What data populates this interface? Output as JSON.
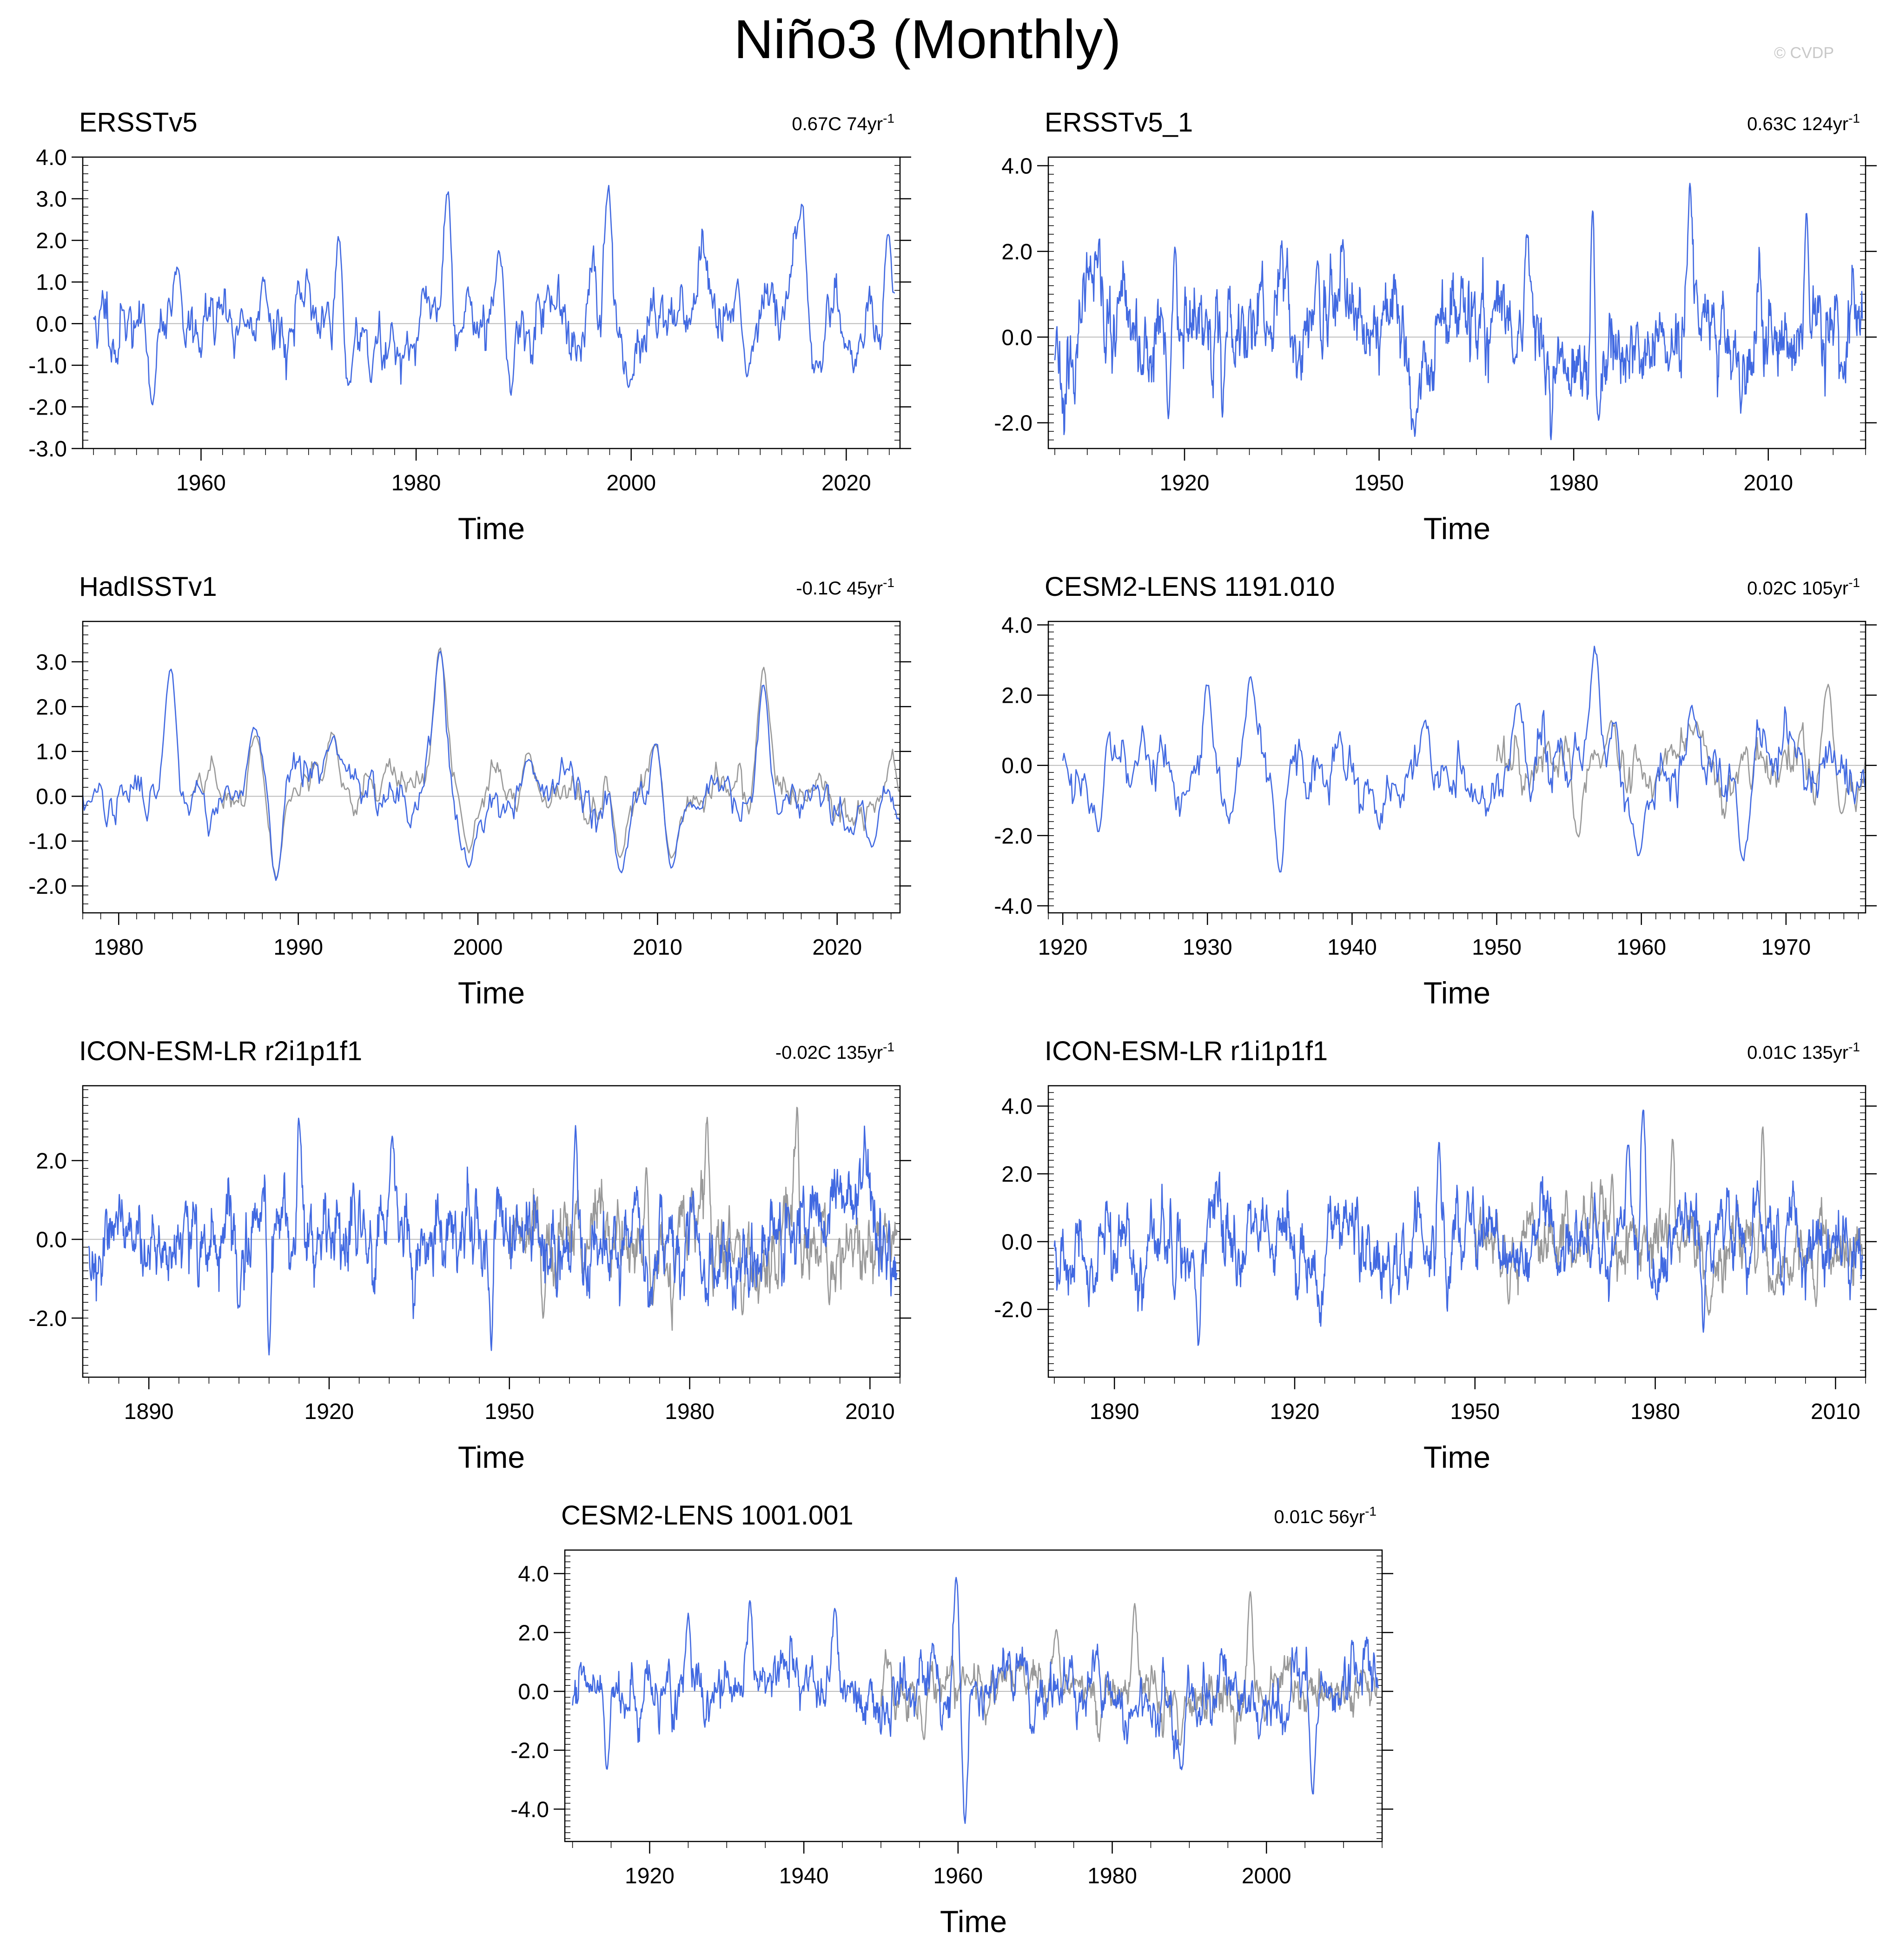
{
  "figure": {
    "title": "Niño3 (Monthly)",
    "watermark": "© CVDP",
    "colors": {
      "primary": "#4169e1",
      "reference": "#999999",
      "frame": "#000000",
      "zero_line": "#bbbbbb"
    }
  },
  "chart_data": [
    {
      "type": "line",
      "title": "ERSSTv5",
      "stat": "0.67C 74yr",
      "stat_sup": "-1",
      "xlabel": "Time",
      "xlim": [
        1949,
        2025
      ],
      "ylim": [
        -3.0,
        4.0
      ],
      "xticks": [
        1960,
        1980,
        2000,
        2020
      ],
      "yticks": [
        -3.0,
        -2.0,
        -1.0,
        0.0,
        1.0,
        2.0,
        3.0,
        4.0
      ],
      "ytick_labels": [
        "-3.0",
        "-2.0",
        "-1.0",
        "0.0",
        "1.0",
        "2.0",
        "3.0",
        "4.0"
      ],
      "series": [
        {
          "name": "ERSSTv5",
          "color": "#4169e1",
          "seed": 11,
          "amp": 0.85,
          "x": [
            1950,
            2024.5
          ],
          "events": [
            [
              1957.8,
              1.4
            ],
            [
              1965.8,
              1.3
            ],
            [
              1972.8,
              2.2
            ],
            [
              1982.9,
              3.0
            ],
            [
              1987.7,
              1.6
            ],
            [
              1997.9,
              3.3
            ],
            [
              2009.9,
              1.1
            ],
            [
              2015.9,
              2.9
            ],
            [
              2023.9,
              2.2
            ],
            [
              1955.5,
              -1.8
            ],
            [
              1973.8,
              -1.6
            ],
            [
              1975.8,
              -1.5
            ],
            [
              1988.8,
              -1.9
            ],
            [
              1999.8,
              -1.3
            ],
            [
              2010.8,
              -1.4
            ]
          ]
        }
      ]
    },
    {
      "type": "line",
      "title": "ERSSTv5_1",
      "stat": "0.63C 124yr",
      "stat_sup": "-1",
      "xlabel": "Time",
      "xlim": [
        1899,
        2025
      ],
      "ylim": [
        -2.6,
        4.2
      ],
      "xticks": [
        1920,
        1950,
        1980,
        2010
      ],
      "yticks": [
        -2.0,
        0.0,
        2.0,
        4.0
      ],
      "ytick_labels": [
        "-2.0",
        "0.0",
        "2.0",
        "4.0"
      ],
      "series": [
        {
          "name": "ERSSTv5_1",
          "color": "#4169e1",
          "seed": 23,
          "amp": 1.0,
          "x": [
            1900,
            2024.5
          ],
          "events": [
            [
              1918.5,
              2.0
            ],
            [
              1940.5,
              1.6
            ],
            [
              1972.8,
              2.2
            ],
            [
              1982.9,
              3.0
            ],
            [
              1997.9,
              3.4
            ],
            [
              2015.9,
              3.0
            ],
            [
              1917.5,
              -2.0
            ],
            [
              1955.5,
              -2.0
            ],
            [
              1983.8,
              -1.8
            ]
          ]
        }
      ]
    },
    {
      "type": "line",
      "title": "HadISSTv1",
      "stat": "-0.1C 45yr",
      "stat_sup": "-1",
      "xlabel": "Time",
      "xlim": [
        1978,
        2023.5
      ],
      "ylim": [
        -2.6,
        3.9
      ],
      "xticks": [
        1980,
        1990,
        2000,
        2010,
        2020
      ],
      "yticks": [
        -2.0,
        -1.0,
        0.0,
        1.0,
        2.0,
        3.0
      ],
      "ytick_labels": [
        "-2.0",
        "-1.0",
        "0.0",
        "1.0",
        "2.0",
        "3.0"
      ],
      "series": [
        {
          "name": "HadISSTv1",
          "color": "#4169e1",
          "seed": 37,
          "amp": 0.55,
          "x": [
            1978,
            2023.5
          ],
          "events": [
            [
              1982.9,
              3.0
            ],
            [
              1987.6,
              1.5
            ],
            [
              1991.9,
              1.3
            ],
            [
              1997.9,
              3.2
            ],
            [
              2002.8,
              0.9
            ],
            [
              2009.9,
              1.3
            ],
            [
              2015.9,
              2.6
            ],
            [
              1988.8,
              -1.9
            ],
            [
              1999.5,
              -1.5
            ],
            [
              2007.9,
              -1.6
            ],
            [
              2010.8,
              -1.5
            ],
            [
              2022.0,
              -1.0
            ]
          ]
        },
        {
          "name": "Reference",
          "color": "#999999",
          "seed": 38,
          "amp": 0.5,
          "x": [
            1984,
            2023.5
          ],
          "events": [
            [
              1987.6,
              1.5
            ],
            [
              1991.9,
              1.4
            ],
            [
              1997.9,
              3.4
            ],
            [
              2002.8,
              1.0
            ],
            [
              2009.9,
              1.2
            ],
            [
              2015.9,
              2.9
            ],
            [
              1988.8,
              -1.8
            ],
            [
              1999.5,
              -1.3
            ],
            [
              2007.9,
              -1.4
            ],
            [
              2010.8,
              -1.4
            ]
          ]
        }
      ]
    },
    {
      "type": "line",
      "title": "CESM2-LENS 1191.010",
      "stat": "0.02C 105yr",
      "stat_sup": "-1",
      "xlabel": "Time",
      "xlim": [
        1919,
        1975.5
      ],
      "ylim": [
        -4.2,
        4.1
      ],
      "xticks": [
        1920,
        1930,
        1940,
        1950,
        1960,
        1970
      ],
      "yticks": [
        -4.0,
        -2.0,
        0.0,
        2.0,
        4.0
      ],
      "ytick_labels": [
        "-4.0",
        "-2.0",
        "0.0",
        "2.0",
        "4.0"
      ],
      "series": [
        {
          "name": "CESM2-LENS 1191.010",
          "color": "#4169e1",
          "seed": 53,
          "amp": 1.0,
          "x": [
            1920,
            1975.5
          ],
          "events": [
            [
              1923,
              1.6
            ],
            [
              1930,
              2.4
            ],
            [
              1933,
              2.4
            ],
            [
              1945,
              1.4
            ],
            [
              1951.5,
              1.7
            ],
            [
              1956.8,
              3.2
            ],
            [
              1963.5,
              1.6
            ],
            [
              1935,
              -3.2
            ],
            [
              1922.5,
              -2.0
            ],
            [
              1931.5,
              -1.6
            ],
            [
              1959.8,
              -2.4
            ],
            [
              1967,
              -2.4
            ]
          ]
        },
        {
          "name": "Reference",
          "color": "#999999",
          "seed": 54,
          "amp": 0.8,
          "x": [
            1950,
            1975.5
          ],
          "events": [
            [
              1957.9,
              1.3
            ],
            [
              1963.8,
              1.2
            ],
            [
              1972.9,
              2.3
            ],
            [
              1955.6,
              -2.0
            ],
            [
              1973.8,
              -1.4
            ]
          ]
        }
      ]
    },
    {
      "type": "line",
      "title": "ICON-ESM-LR r2i1p1f1",
      "stat": "-0.02C 135yr",
      "stat_sup": "-1",
      "xlabel": "Time",
      "xlim": [
        1879,
        2015
      ],
      "ylim": [
        -3.5,
        3.9
      ],
      "xticks": [
        1890,
        1920,
        1950,
        1980,
        2010
      ],
      "yticks": [
        -2.0,
        0.0,
        2.0
      ],
      "ytick_labels": [
        "-2.0",
        "0.0",
        "2.0"
      ],
      "series": [
        {
          "name": "ICON-ESM-LR r2i1p1f1",
          "color": "#4169e1",
          "seed": 71,
          "amp": 1.0,
          "x": [
            1880,
            2014.5
          ],
          "events": [
            [
              1915,
              3.0
            ],
            [
              1930.5,
              2.6
            ],
            [
              1961,
              2.8
            ],
            [
              1910,
              -3.1
            ],
            [
              1947,
              -2.8
            ],
            [
              1905,
              -1.8
            ]
          ]
        },
        {
          "name": "Reference",
          "color": "#999999",
          "seed": 72,
          "amp": 0.85,
          "x": [
            1950,
            2014.5
          ],
          "events": [
            [
              1982.9,
              2.9
            ],
            [
              1997.9,
              3.3
            ],
            [
              1972.8,
              2.0
            ],
            [
              1955.6,
              -2.0
            ],
            [
              1973.8,
              -1.6
            ],
            [
              1988.8,
              -1.9
            ]
          ]
        }
      ]
    },
    {
      "type": "line",
      "title": "ICON-ESM-LR r1i1p1f1",
      "stat": "0.01C 135yr",
      "stat_sup": "-1",
      "xlabel": "Time",
      "xlim": [
        1879,
        2015
      ],
      "ylim": [
        -4.0,
        4.6
      ],
      "xticks": [
        1890,
        1920,
        1950,
        1980,
        2010
      ],
      "yticks": [
        -2.0,
        0.0,
        2.0,
        4.0
      ],
      "ytick_labels": [
        "-2.0",
        "0.0",
        "2.0",
        "4.0"
      ],
      "series": [
        {
          "name": "ICON-ESM-LR r1i1p1f1",
          "color": "#4169e1",
          "seed": 89,
          "amp": 1.05,
          "x": [
            1880,
            2014.5
          ],
          "events": [
            [
              1978,
              3.8
            ],
            [
              1944,
              3.0
            ],
            [
              1975.5,
              2.8
            ],
            [
              1904,
              -3.1
            ],
            [
              1988,
              -2.8
            ],
            [
              1900,
              -2.0
            ]
          ]
        },
        {
          "name": "Reference",
          "color": "#999999",
          "seed": 90,
          "amp": 0.85,
          "x": [
            1950,
            2014.5
          ],
          "events": [
            [
              1982.9,
              2.9
            ],
            [
              1997.9,
              3.4
            ],
            [
              1972.8,
              2.1
            ],
            [
              1955.6,
              -1.9
            ],
            [
              1988.8,
              -1.9
            ],
            [
              1999.8,
              -1.4
            ]
          ]
        }
      ]
    },
    {
      "type": "line",
      "title": "CESM2-LENS 1001.001",
      "stat": "0.01C 56yr",
      "stat_sup": "-1",
      "xlabel": "Time",
      "xlim": [
        1909,
        2015
      ],
      "ylim": [
        -5.1,
        4.8
      ],
      "xticks": [
        1920,
        1940,
        1960,
        1980,
        2000
      ],
      "yticks": [
        -4.0,
        -2.0,
        0.0,
        2.0,
        4.0
      ],
      "ytick_labels": [
        "-4.0",
        "-2.0",
        "0.0",
        "2.0",
        "4.0"
      ],
      "series": [
        {
          "name": "CESM2-LENS 1001.001",
          "color": "#4169e1",
          "seed": 101,
          "amp": 1.0,
          "x": [
            1910,
            2014.5
          ],
          "events": [
            [
              1959.8,
              3.8
            ],
            [
              1933,
              2.9
            ],
            [
              1925,
              2.7
            ],
            [
              1944,
              2.8
            ],
            [
              1960.9,
              -4.6
            ],
            [
              2006,
              -3.5
            ],
            [
              1914.5,
              -2.8
            ],
            [
              1989,
              -2.6
            ]
          ]
        },
        {
          "name": "Reference",
          "color": "#999999",
          "seed": 102,
          "amp": 0.8,
          "x": [
            1950,
            2014.5
          ],
          "events": [
            [
              1982.9,
              3.0
            ],
            [
              1997.9,
              3.4
            ],
            [
              1972.8,
              2.0
            ],
            [
              1955.6,
              -1.8
            ],
            [
              1988.8,
              -1.8
            ],
            [
              1999.8,
              -1.2
            ]
          ]
        }
      ]
    }
  ]
}
